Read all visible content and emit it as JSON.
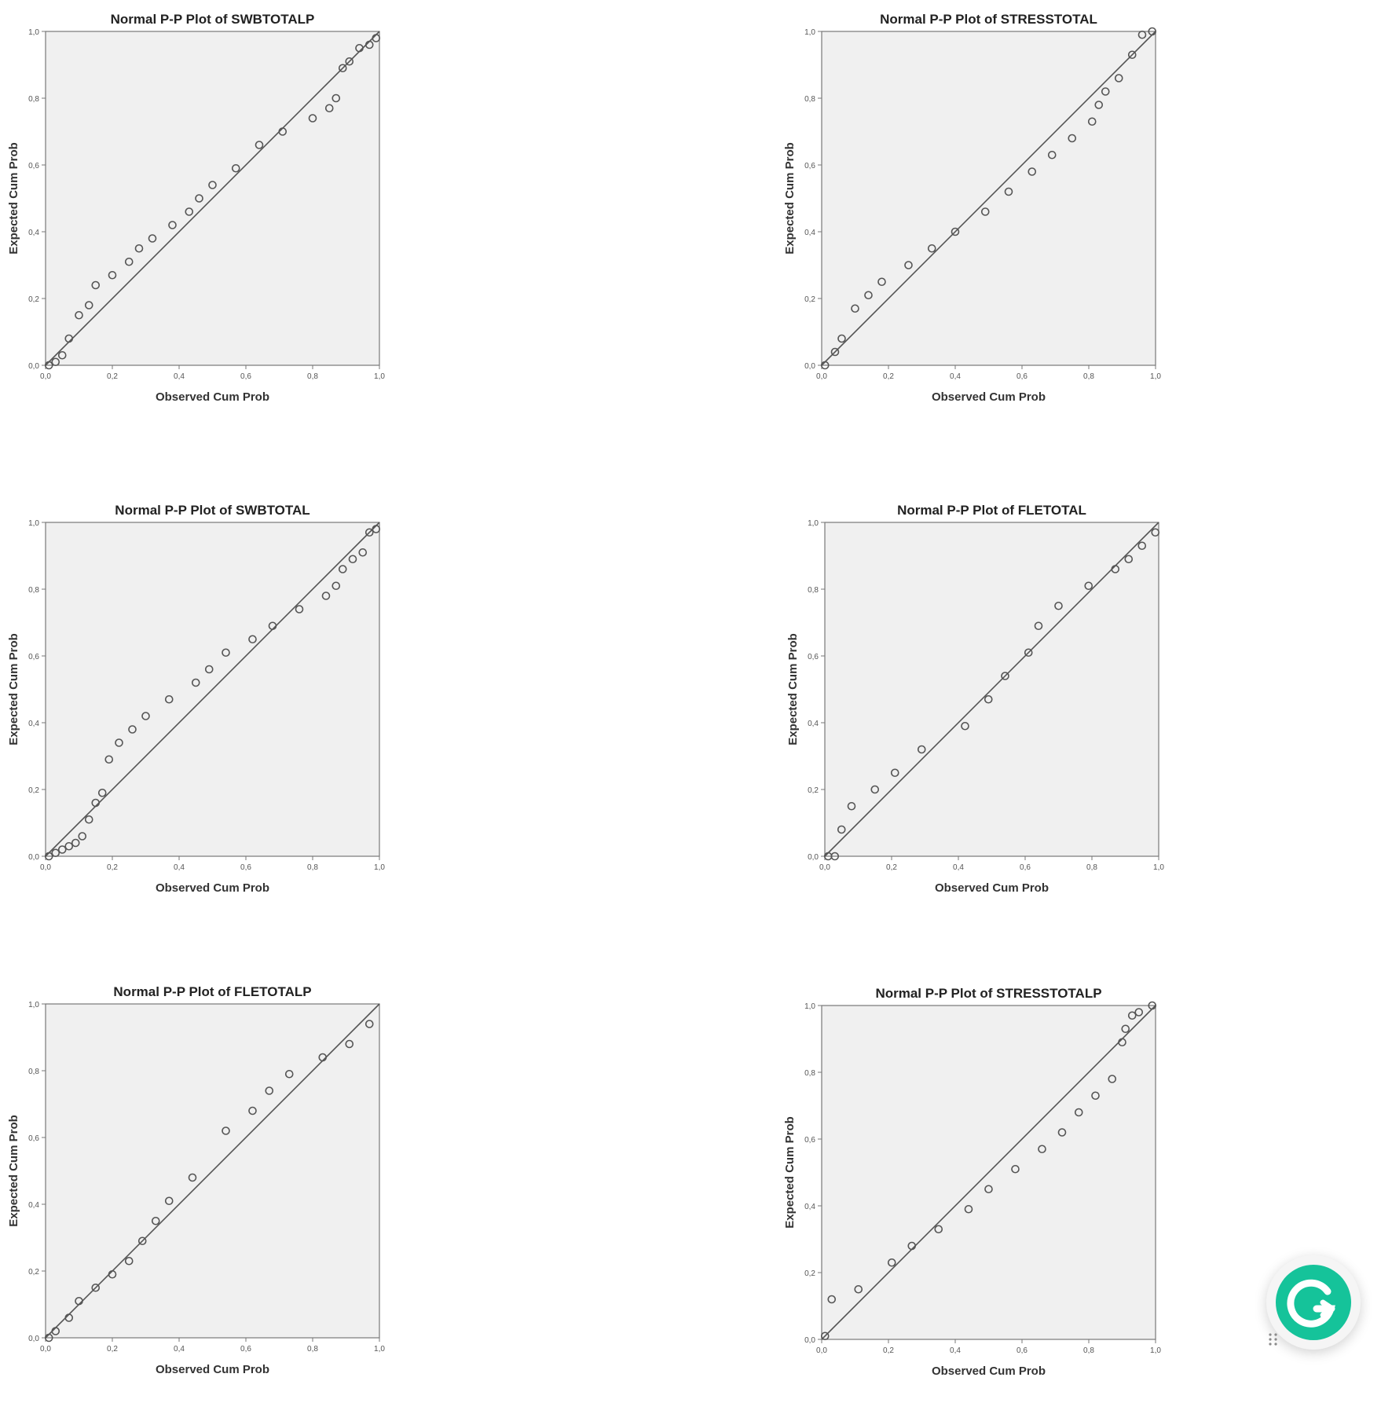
{
  "chart_data": [
    {
      "type": "scatter",
      "title": "Normal P-P Plot of SWBTOTALP",
      "xlabel": "Observed Cum Prob",
      "ylabel": "Expected Cum Prob",
      "xlim": [
        0,
        1
      ],
      "ylim": [
        0,
        1
      ],
      "ticks": [
        "0,0",
        "0,2",
        "0,4",
        "0,6",
        "0,8",
        "1,0"
      ],
      "reference_line": [
        [
          0,
          0
        ],
        [
          1,
          1
        ]
      ],
      "points": [
        [
          0.01,
          0.0
        ],
        [
          0.03,
          0.01
        ],
        [
          0.05,
          0.03
        ],
        [
          0.07,
          0.08
        ],
        [
          0.1,
          0.15
        ],
        [
          0.13,
          0.18
        ],
        [
          0.15,
          0.24
        ],
        [
          0.2,
          0.27
        ],
        [
          0.25,
          0.31
        ],
        [
          0.28,
          0.35
        ],
        [
          0.32,
          0.38
        ],
        [
          0.38,
          0.42
        ],
        [
          0.43,
          0.46
        ],
        [
          0.46,
          0.5
        ],
        [
          0.5,
          0.54
        ],
        [
          0.57,
          0.59
        ],
        [
          0.64,
          0.66
        ],
        [
          0.71,
          0.7
        ],
        [
          0.8,
          0.74
        ],
        [
          0.85,
          0.77
        ],
        [
          0.87,
          0.8
        ],
        [
          0.89,
          0.89
        ],
        [
          0.91,
          0.91
        ],
        [
          0.94,
          0.95
        ],
        [
          0.97,
          0.96
        ],
        [
          0.99,
          0.98
        ]
      ]
    },
    {
      "type": "scatter",
      "title": "Normal P-P Plot of STRESSTOTAL",
      "xlabel": "Observed Cum Prob",
      "ylabel": "Expected Cum Prob",
      "xlim": [
        0,
        1
      ],
      "ylim": [
        0,
        1
      ],
      "ticks": [
        "0,0",
        "0,2",
        "0,4",
        "0,6",
        "0,8",
        "1,0"
      ],
      "reference_line": [
        [
          0,
          0
        ],
        [
          1,
          1
        ]
      ],
      "points": [
        [
          0.01,
          0.0
        ],
        [
          0.04,
          0.04
        ],
        [
          0.06,
          0.08
        ],
        [
          0.1,
          0.17
        ],
        [
          0.14,
          0.21
        ],
        [
          0.18,
          0.25
        ],
        [
          0.26,
          0.3
        ],
        [
          0.33,
          0.35
        ],
        [
          0.4,
          0.4
        ],
        [
          0.49,
          0.46
        ],
        [
          0.56,
          0.52
        ],
        [
          0.63,
          0.58
        ],
        [
          0.69,
          0.63
        ],
        [
          0.75,
          0.68
        ],
        [
          0.81,
          0.73
        ],
        [
          0.83,
          0.78
        ],
        [
          0.85,
          0.82
        ],
        [
          0.89,
          0.86
        ],
        [
          0.93,
          0.93
        ],
        [
          0.96,
          0.99
        ],
        [
          0.99,
          1.0
        ]
      ]
    },
    {
      "type": "scatter",
      "title": "Normal P-P Plot of SWBTOTAL",
      "xlabel": "Observed Cum Prob",
      "ylabel": "Expected Cum Prob",
      "xlim": [
        0,
        1
      ],
      "ylim": [
        0,
        1
      ],
      "ticks": [
        "0,0",
        "0,2",
        "0,4",
        "0,6",
        "0,8",
        "1,0"
      ],
      "reference_line": [
        [
          0,
          0
        ],
        [
          1,
          1
        ]
      ],
      "points": [
        [
          0.01,
          0.0
        ],
        [
          0.03,
          0.01
        ],
        [
          0.05,
          0.02
        ],
        [
          0.07,
          0.03
        ],
        [
          0.09,
          0.04
        ],
        [
          0.11,
          0.06
        ],
        [
          0.13,
          0.11
        ],
        [
          0.15,
          0.16
        ],
        [
          0.17,
          0.19
        ],
        [
          0.19,
          0.29
        ],
        [
          0.22,
          0.34
        ],
        [
          0.26,
          0.38
        ],
        [
          0.3,
          0.42
        ],
        [
          0.37,
          0.47
        ],
        [
          0.45,
          0.52
        ],
        [
          0.49,
          0.56
        ],
        [
          0.54,
          0.61
        ],
        [
          0.62,
          0.65
        ],
        [
          0.68,
          0.69
        ],
        [
          0.76,
          0.74
        ],
        [
          0.84,
          0.78
        ],
        [
          0.87,
          0.81
        ],
        [
          0.89,
          0.86
        ],
        [
          0.92,
          0.89
        ],
        [
          0.95,
          0.91
        ],
        [
          0.97,
          0.97
        ],
        [
          0.99,
          0.98
        ]
      ]
    },
    {
      "type": "scatter",
      "title": "Normal P-P Plot of FLETOTAL",
      "xlabel": "Observed Cum Prob",
      "ylabel": "Expected Cum Prob",
      "xlim": [
        0,
        1
      ],
      "ylim": [
        0,
        1
      ],
      "ticks": [
        "0,0",
        "0,2",
        "0,4",
        "0,6",
        "0,8",
        "1,0"
      ],
      "reference_line": [
        [
          0,
          0
        ],
        [
          1,
          1
        ]
      ],
      "points": [
        [
          0.01,
          0.0
        ],
        [
          0.03,
          0.0
        ],
        [
          0.05,
          0.08
        ],
        [
          0.08,
          0.15
        ],
        [
          0.15,
          0.2
        ],
        [
          0.21,
          0.25
        ],
        [
          0.29,
          0.32
        ],
        [
          0.42,
          0.39
        ],
        [
          0.49,
          0.47
        ],
        [
          0.54,
          0.54
        ],
        [
          0.61,
          0.61
        ],
        [
          0.64,
          0.69
        ],
        [
          0.7,
          0.75
        ],
        [
          0.79,
          0.81
        ],
        [
          0.87,
          0.86
        ],
        [
          0.91,
          0.89
        ],
        [
          0.95,
          0.93
        ],
        [
          0.99,
          0.97
        ]
      ]
    },
    {
      "type": "scatter",
      "title": "Normal P-P Plot of FLETOTALP",
      "xlabel": "Observed Cum Prob",
      "ylabel": "Expected Cum Prob",
      "xlim": [
        0,
        1
      ],
      "ylim": [
        0,
        1
      ],
      "ticks": [
        "0,0",
        "0,2",
        "0,4",
        "0,6",
        "0,8",
        "1,0"
      ],
      "reference_line": [
        [
          0,
          0
        ],
        [
          1,
          1
        ]
      ],
      "points": [
        [
          0.01,
          0.0
        ],
        [
          0.03,
          0.02
        ],
        [
          0.07,
          0.06
        ],
        [
          0.1,
          0.11
        ],
        [
          0.15,
          0.15
        ],
        [
          0.2,
          0.19
        ],
        [
          0.25,
          0.23
        ],
        [
          0.29,
          0.29
        ],
        [
          0.33,
          0.35
        ],
        [
          0.37,
          0.41
        ],
        [
          0.44,
          0.48
        ],
        [
          0.54,
          0.62
        ],
        [
          0.62,
          0.68
        ],
        [
          0.67,
          0.74
        ],
        [
          0.73,
          0.79
        ],
        [
          0.83,
          0.84
        ],
        [
          0.91,
          0.88
        ],
        [
          0.97,
          0.94
        ]
      ]
    },
    {
      "type": "scatter",
      "title": "Normal P-P Plot of STRESSTOTALP",
      "xlabel": "Observed Cum Prob",
      "ylabel": "Expected Cum Prob",
      "xlim": [
        0,
        1
      ],
      "ylim": [
        0,
        1
      ],
      "ticks": [
        "0,0",
        "0,2",
        "0,4",
        "0,6",
        "0,8",
        "1,0"
      ],
      "reference_line": [
        [
          0,
          0
        ],
        [
          1,
          1
        ]
      ],
      "points": [
        [
          0.01,
          0.01
        ],
        [
          0.03,
          0.12
        ],
        [
          0.11,
          0.15
        ],
        [
          0.21,
          0.23
        ],
        [
          0.27,
          0.28
        ],
        [
          0.35,
          0.33
        ],
        [
          0.44,
          0.39
        ],
        [
          0.5,
          0.45
        ],
        [
          0.58,
          0.51
        ],
        [
          0.66,
          0.57
        ],
        [
          0.72,
          0.62
        ],
        [
          0.77,
          0.68
        ],
        [
          0.82,
          0.73
        ],
        [
          0.87,
          0.78
        ],
        [
          0.9,
          0.89
        ],
        [
          0.91,
          0.93
        ],
        [
          0.93,
          0.97
        ],
        [
          0.95,
          0.98
        ],
        [
          0.99,
          1.0
        ]
      ]
    }
  ],
  "widget": {
    "name": "grammarly-icon",
    "color": "#15c39a"
  }
}
